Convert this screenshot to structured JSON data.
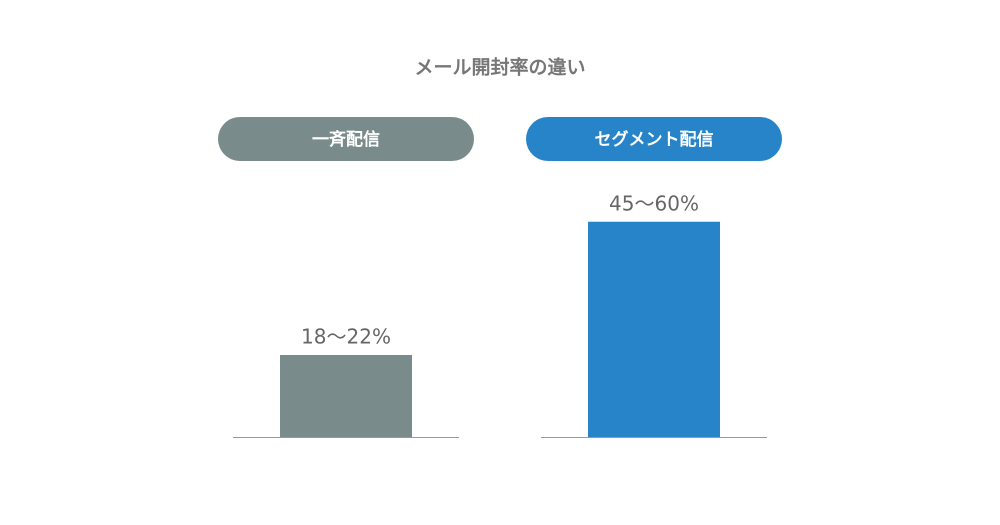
{
  "chart_data": {
    "type": "bar",
    "title": "メール開封率の違い",
    "categories": [
      "一斉配信",
      "セグメント配信"
    ],
    "values": [
      20,
      52.5
    ],
    "value_labels": [
      "18〜22%",
      "45〜60%"
    ],
    "colors": [
      "#7a8b8b",
      "#2784c8"
    ],
    "ylim": [
      0,
      60
    ]
  }
}
